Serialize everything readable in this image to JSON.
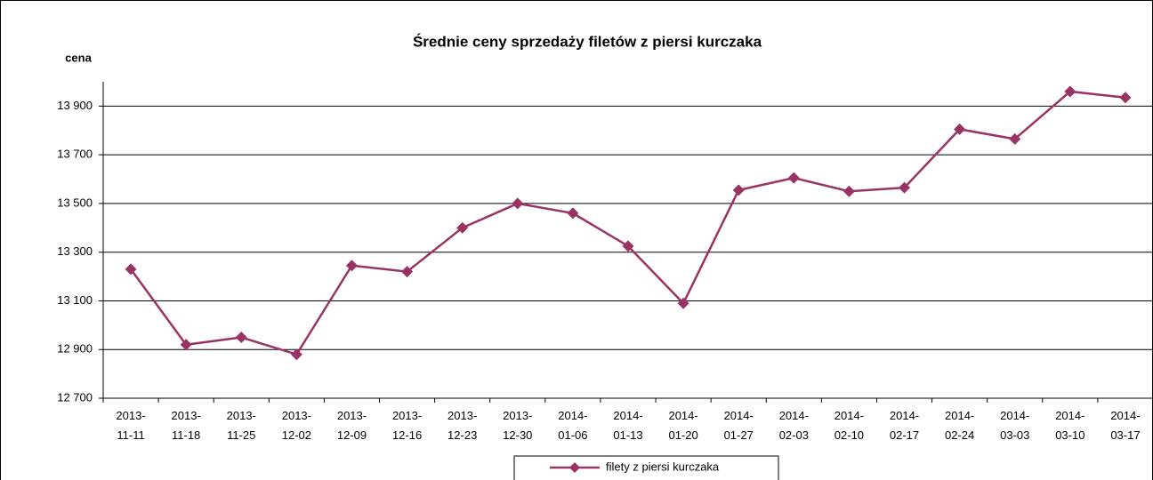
{
  "chart_data": {
    "type": "line",
    "title": "Średnie ceny sprzedaży filetów z piersi kurczaka",
    "y_label": "cena",
    "categories": [
      "2013-11-11",
      "2013-11-18",
      "2013-11-25",
      "2013-12-02",
      "2013-12-09",
      "2013-12-16",
      "2013-12-23",
      "2013-12-30",
      "2014-01-06",
      "2014-01-13",
      "2014-01-20",
      "2014-01-27",
      "2014-02-03",
      "2014-02-10",
      "2014-02-17",
      "2014-02-24",
      "2014-03-03",
      "2014-03-10",
      "2014-03-17"
    ],
    "series": [
      {
        "name": "filety z piersi kurczaka",
        "color": "#993366",
        "values": [
          13230,
          12920,
          12950,
          12880,
          13245,
          13220,
          13400,
          13500,
          13460,
          13325,
          13090,
          13555,
          13605,
          13550,
          13565,
          13805,
          13765,
          13960,
          13935
        ]
      }
    ],
    "ylim": [
      12700,
      14000
    ],
    "yticks": [
      {
        "value": 12700,
        "label": "12 700"
      },
      {
        "value": 12900,
        "label": "12 900"
      },
      {
        "value": 13100,
        "label": "13 100"
      },
      {
        "value": 13300,
        "label": "13 300"
      },
      {
        "value": 13500,
        "label": "13 500"
      },
      {
        "value": 13700,
        "label": "13 700"
      },
      {
        "value": 13900,
        "label": "13 900"
      }
    ],
    "grid": true,
    "legend": "bottom"
  }
}
